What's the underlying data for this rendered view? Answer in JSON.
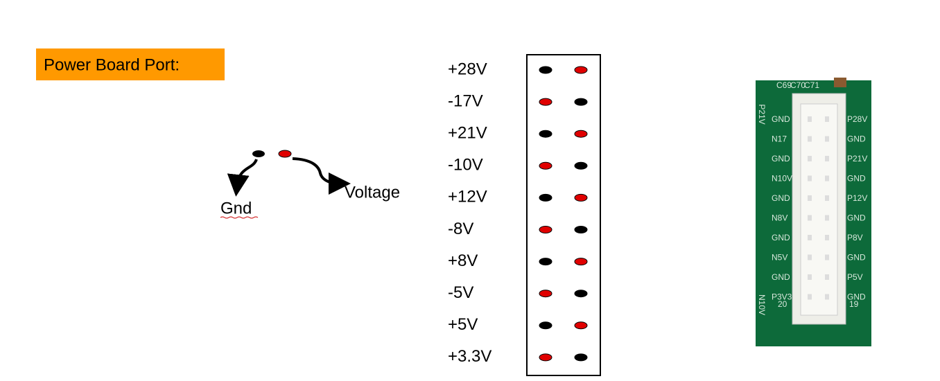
{
  "header": {
    "title": "Power Board Port:",
    "title_color": "#ff9900"
  },
  "legend": {
    "gnd": {
      "label": "Gnd",
      "color": "#000000"
    },
    "voltage": {
      "label": "Voltage",
      "color": "#e00000"
    }
  },
  "rows": [
    {
      "label": "+28V",
      "pin_colors": [
        "#000000",
        "#e00000"
      ]
    },
    {
      "label": "-17V",
      "pin_colors": [
        "#e00000",
        "#000000"
      ]
    },
    {
      "label": "+21V",
      "pin_colors": [
        "#000000",
        "#e00000"
      ]
    },
    {
      "label": "-10V",
      "pin_colors": [
        "#e00000",
        "#000000"
      ]
    },
    {
      "label": "+12V",
      "pin_colors": [
        "#000000",
        "#e00000"
      ]
    },
    {
      "label": "-8V",
      "pin_colors": [
        "#e00000",
        "#000000"
      ]
    },
    {
      "label": "+8V",
      "pin_colors": [
        "#000000",
        "#e00000"
      ]
    },
    {
      "label": "-5V",
      "pin_colors": [
        "#e00000",
        "#000000"
      ]
    },
    {
      "label": "+5V",
      "pin_colors": [
        "#000000",
        "#e00000"
      ]
    },
    {
      "label": "+3.3V",
      "pin_colors": [
        "#e00000",
        "#000000"
      ]
    }
  ],
  "photo": {
    "top_labels": [
      "C69",
      "C70",
      "C71"
    ],
    "left_labels": [
      "GND",
      "N17",
      "GND",
      "N10V",
      "GND",
      "N8V",
      "GND",
      "N5V",
      "GND",
      "P3V3"
    ],
    "right_labels": [
      "P28V",
      "GND",
      "P21V",
      "GND",
      "P12V",
      "GND",
      "P8V",
      "GND",
      "P5V",
      "GND"
    ],
    "side_labels": [
      "P21V",
      "N10V"
    ],
    "pin_numbers": [
      "20",
      "19"
    ]
  }
}
